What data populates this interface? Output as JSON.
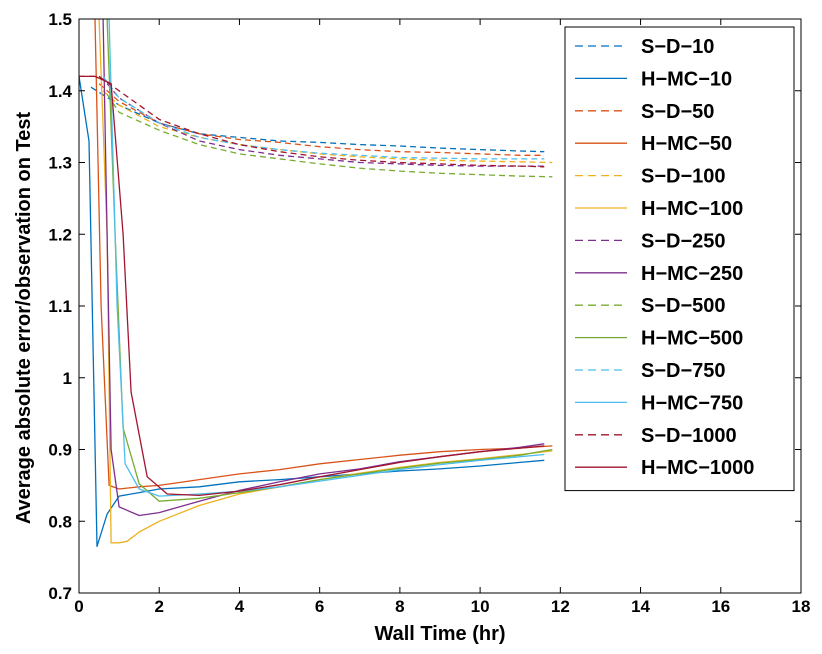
{
  "chart_data": {
    "type": "line",
    "title": "",
    "xlabel": "Wall Time (hr)",
    "ylabel": "Average absolute error/observation on Test",
    "xlim": [
      0,
      18
    ],
    "ylim": [
      0.7,
      1.5
    ],
    "xticks": [
      "0",
      "2",
      "4",
      "6",
      "8",
      "10",
      "12",
      "14",
      "16",
      "18"
    ],
    "yticks": [
      "0.7",
      "0.8",
      "0.9",
      "1",
      "1.1",
      "1.2",
      "1.3",
      "1.4",
      "1.5"
    ],
    "legend_position": "top-right",
    "series": [
      {
        "name": "S−D−10",
        "style": "dashed",
        "color": "#0072BD",
        "x": [
          0.3,
          1,
          2,
          3,
          4,
          5,
          6,
          7,
          8,
          9,
          10,
          11,
          11.6
        ],
        "y": [
          1.405,
          1.38,
          1.355,
          1.34,
          1.335,
          1.33,
          1.328,
          1.325,
          1.323,
          1.32,
          1.318,
          1.316,
          1.315
        ]
      },
      {
        "name": "H−MC−10",
        "style": "solid",
        "color": "#0072BD",
        "x": [
          0,
          0.25,
          0.45,
          0.7,
          1,
          1.5,
          2,
          3,
          4,
          5,
          6,
          7,
          8,
          9,
          10,
          11,
          11.6
        ],
        "y": [
          1.42,
          1.33,
          0.765,
          0.81,
          0.835,
          0.84,
          0.845,
          0.848,
          0.855,
          0.858,
          0.862,
          0.866,
          0.87,
          0.873,
          0.877,
          0.882,
          0.885
        ]
      },
      {
        "name": "S−D−50",
        "style": "dashed",
        "color": "#D95319",
        "x": [
          0.5,
          1,
          2,
          3,
          4,
          5,
          6,
          7,
          8,
          9,
          10,
          11,
          11.6
        ],
        "y": [
          1.41,
          1.385,
          1.355,
          1.34,
          1.332,
          1.328,
          1.322,
          1.318,
          1.315,
          1.314,
          1.312,
          1.31,
          1.31
        ]
      },
      {
        "name": "H−MC−50",
        "style": "solid",
        "color": "#D95319",
        "x": [
          0.4,
          0.55,
          0.75,
          1,
          1.5,
          2,
          3,
          4,
          5,
          6,
          7,
          8,
          9,
          10,
          11,
          11.8
        ],
        "y": [
          1.5,
          1.1,
          0.85,
          0.845,
          0.848,
          0.85,
          0.858,
          0.866,
          0.872,
          0.88,
          0.886,
          0.892,
          0.897,
          0.9,
          0.902,
          0.905
        ]
      },
      {
        "name": "S−D−100",
        "style": "dashed",
        "color": "#EDB120",
        "x": [
          0.6,
          1,
          2,
          3,
          4,
          5,
          6,
          7,
          8,
          9,
          10,
          11,
          11.8
        ],
        "y": [
          1.4,
          1.38,
          1.35,
          1.335,
          1.325,
          1.318,
          1.312,
          1.308,
          1.305,
          1.303,
          1.302,
          1.301,
          1.3
        ]
      },
      {
        "name": "H−MC−100",
        "style": "solid",
        "color": "#EDB120",
        "x": [
          0.5,
          0.7,
          0.8,
          1,
          1.2,
          1.5,
          2,
          3,
          4,
          5,
          6,
          7,
          8,
          9,
          10,
          11,
          11.8
        ],
        "y": [
          1.5,
          1.2,
          0.77,
          0.77,
          0.772,
          0.785,
          0.8,
          0.822,
          0.838,
          0.848,
          0.858,
          0.867,
          0.875,
          0.882,
          0.887,
          0.893,
          0.898
        ]
      },
      {
        "name": "S−D−250",
        "style": "dashed",
        "color": "#7E2F8E",
        "x": [
          0.7,
          1,
          2,
          3,
          4,
          5,
          6,
          7,
          8,
          9,
          10,
          11,
          11.6
        ],
        "y": [
          1.41,
          1.39,
          1.355,
          1.33,
          1.318,
          1.31,
          1.305,
          1.3,
          1.298,
          1.296,
          1.295,
          1.295,
          1.295
        ]
      },
      {
        "name": "H−MC−250",
        "style": "solid",
        "color": "#7E2F8E",
        "x": [
          0.6,
          0.8,
          1,
          1.5,
          2,
          3,
          4,
          5,
          6,
          7,
          8,
          9,
          10,
          11,
          11.6
        ],
        "y": [
          1.5,
          0.9,
          0.82,
          0.808,
          0.812,
          0.828,
          0.843,
          0.855,
          0.866,
          0.873,
          0.883,
          0.89,
          0.897,
          0.903,
          0.908
        ]
      },
      {
        "name": "S−D−500",
        "style": "dashed",
        "color": "#77AC30",
        "x": [
          0.7,
          1,
          2,
          3,
          4,
          5,
          6,
          7,
          8,
          9,
          10,
          11,
          11.8
        ],
        "y": [
          1.395,
          1.37,
          1.345,
          1.325,
          1.312,
          1.305,
          1.298,
          1.292,
          1.288,
          1.285,
          1.283,
          1.281,
          1.28
        ]
      },
      {
        "name": "H−MC−500",
        "style": "solid",
        "color": "#77AC30",
        "x": [
          0.7,
          0.9,
          1.1,
          1.5,
          2,
          3,
          4,
          5,
          6,
          7,
          8,
          9,
          10,
          11,
          11.8
        ],
        "y": [
          1.5,
          1.2,
          0.93,
          0.852,
          0.828,
          0.832,
          0.84,
          0.848,
          0.858,
          0.866,
          0.874,
          0.881,
          0.886,
          0.892,
          0.9
        ]
      },
      {
        "name": "S−D−750",
        "style": "dashed",
        "color": "#4DBEEE",
        "x": [
          0.6,
          1,
          2,
          3,
          4,
          5,
          6,
          7,
          8,
          9,
          10,
          11,
          11.6
        ],
        "y": [
          1.42,
          1.39,
          1.355,
          1.335,
          1.325,
          1.318,
          1.313,
          1.31,
          1.307,
          1.306,
          1.305,
          1.305,
          1.305
        ]
      },
      {
        "name": "H−MC−750",
        "style": "solid",
        "color": "#4DBEEE",
        "x": [
          0.75,
          0.95,
          1.15,
          1.5,
          2,
          3,
          4,
          5,
          6,
          7,
          8,
          9,
          10,
          11,
          11.6
        ],
        "y": [
          1.5,
          1.1,
          0.88,
          0.845,
          0.835,
          0.838,
          0.842,
          0.848,
          0.856,
          0.864,
          0.872,
          0.879,
          0.885,
          0.89,
          0.893
        ]
      },
      {
        "name": "S−D−1000",
        "style": "dashed",
        "color": "#A2142F",
        "x": [
          0,
          0.5,
          1,
          2,
          3,
          4,
          5,
          6,
          7,
          8,
          9,
          10,
          11,
          11.6
        ],
        "y": [
          1.42,
          1.42,
          1.4,
          1.36,
          1.34,
          1.325,
          1.315,
          1.308,
          1.303,
          1.3,
          1.298,
          1.296,
          1.295,
          1.294
        ]
      },
      {
        "name": "H−MC−1000",
        "style": "solid",
        "color": "#A2142F",
        "x": [
          0,
          0.4,
          0.8,
          1.1,
          1.3,
          1.7,
          2.2,
          3,
          4,
          5,
          6,
          7,
          8,
          9,
          10,
          11,
          11.6
        ],
        "y": [
          1.42,
          1.42,
          1.41,
          1.2,
          0.98,
          0.862,
          0.838,
          0.836,
          0.842,
          0.851,
          0.862,
          0.872,
          0.882,
          0.89,
          0.897,
          0.902,
          0.905
        ]
      }
    ]
  }
}
